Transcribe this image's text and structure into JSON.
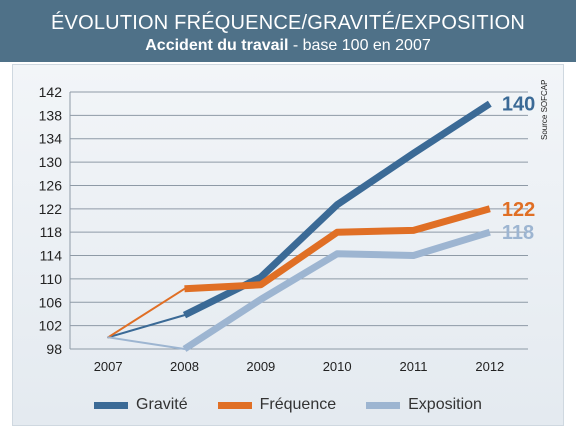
{
  "header": {
    "title": "ÉVOLUTION FRÉQUENCE/GRAVITÉ/EXPOSITION",
    "subtitle_bold": "Accident du travail",
    "subtitle_rest": " - base 100 en 2007"
  },
  "source": "Source SOFCAP",
  "chart_data": {
    "type": "line",
    "title": "ÉVOLUTION FRÉQUENCE/GRAVITÉ/EXPOSITION",
    "subtitle": "Accident du travail - base 100 en 2007",
    "categories": [
      "2007",
      "2008",
      "2009",
      "2010",
      "2011",
      "2012"
    ],
    "yticks": [
      98,
      102,
      106,
      110,
      114,
      118,
      122,
      126,
      130,
      134,
      138,
      142
    ],
    "ylim": [
      98,
      142
    ],
    "grid": "horizontal",
    "legend_position": "bottom",
    "series": [
      {
        "name": "Gravité",
        "color": "#3b6a96",
        "values": [
          100,
          103.8,
          110.3,
          122.7,
          131.5,
          140
        ],
        "end_label": "140"
      },
      {
        "name": "Fréquence",
        "color": "#e06f25",
        "values": [
          100,
          108.3,
          109,
          118,
          118.3,
          122
        ],
        "end_label": "122"
      },
      {
        "name": "Exposition",
        "color": "#9db5d1",
        "values": [
          100,
          98,
          106.5,
          114.3,
          114,
          118
        ],
        "end_label": "118"
      }
    ]
  }
}
